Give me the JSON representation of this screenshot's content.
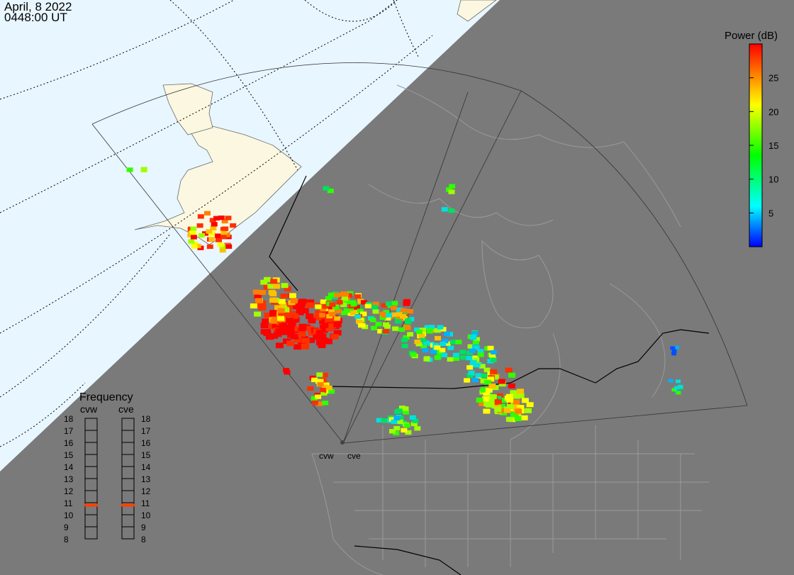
{
  "header": {
    "date": "April, 8 2022",
    "time": "0448:00 UT"
  },
  "colorbar": {
    "title": "Power (dB)",
    "ticks": [
      "25",
      "20",
      "15",
      "10",
      "5"
    ],
    "range": [
      0,
      30
    ],
    "stops": [
      "#0000ff",
      "#00ffff",
      "#00ff00",
      "#ffff00",
      "#ff8000",
      "#ff0000"
    ]
  },
  "frequency_panel": {
    "title": "Frequency",
    "radars": [
      {
        "name": "cvw",
        "selected_mhz": 10.8
      },
      {
        "name": "cve",
        "selected_mhz": 10.8
      }
    ],
    "scale": [
      "18",
      "17",
      "16",
      "15",
      "14",
      "13",
      "12",
      "11",
      "10",
      "9",
      "8"
    ]
  },
  "radar_sites": [
    {
      "name": "cvw"
    },
    {
      "name": "cve"
    }
  ],
  "colors": {
    "night": "#7a7a7a",
    "day_ocean": "#e8f6ff",
    "day_land": "#fbf7e1",
    "terminator": "#000000",
    "marker": "#ff4000"
  }
}
